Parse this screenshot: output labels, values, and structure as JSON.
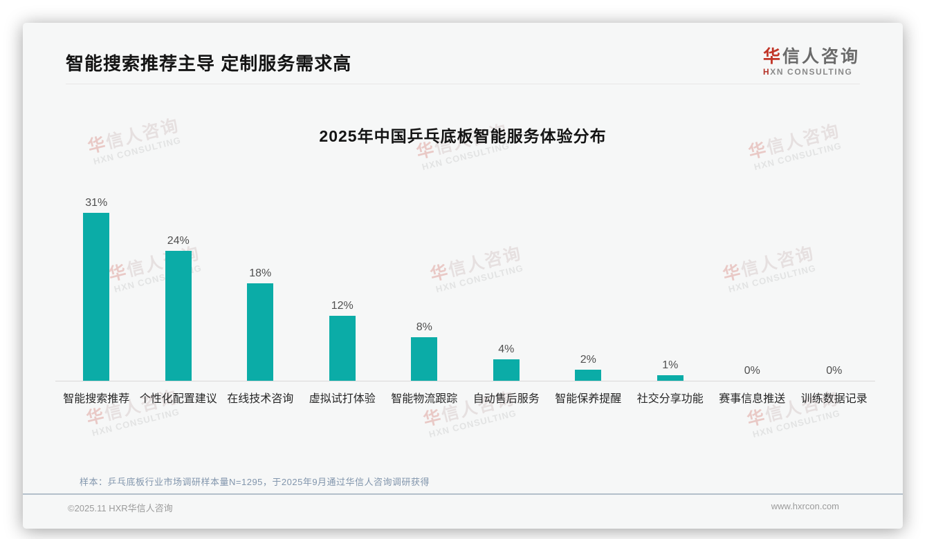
{
  "page": {
    "header": {
      "title": "智能搜索推荐主导 定制服务需求高"
    },
    "logo": {
      "cn_first": "华",
      "cn_rest": "信人咨询",
      "en_first": "H",
      "en_rest": "XN CONSULTING"
    },
    "note": "样本：乒乓底板行业市场调研样本量N=1295，于2025年9月通过华信人咨询调研获得",
    "footer": {
      "copyright": "©2025.11 HXR华信人咨询",
      "website": "www.hxrcon.com"
    },
    "watermark": {
      "cn_first": "华",
      "cn_rest": "信人咨询",
      "en": "HXN CONSULTING"
    }
  },
  "chart_data": {
    "type": "bar",
    "title": "2025年中国乒乓底板智能服务体验分布",
    "categories": [
      "智能搜索推荐",
      "个性化配置建议",
      "在线技术咨询",
      "虚拟试打体验",
      "智能物流跟踪",
      "自动售后服务",
      "智能保养提醒",
      "社交分享功能",
      "赛事信息推送",
      "训练数据记录"
    ],
    "values": [
      31,
      24,
      18,
      12,
      8,
      4,
      2,
      1,
      0,
      0
    ],
    "unit": "%",
    "value_labels": [
      "31%",
      "24%",
      "18%",
      "12%",
      "8%",
      "4%",
      "2%",
      "1%",
      "0%",
      "0%"
    ],
    "bar_color": "#0baca7",
    "xlabel": "",
    "ylabel": "",
    "ylim": [
      0,
      35
    ],
    "grid": false,
    "legend": "none"
  }
}
